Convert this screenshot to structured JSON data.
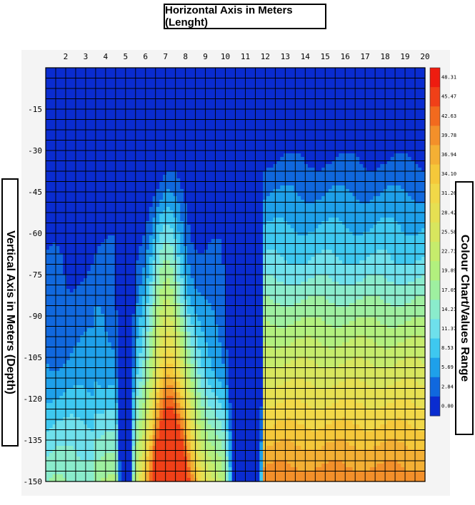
{
  "chart_data": {
    "type": "heatmap",
    "title": "Horizontal Axis in Meters (Lenght)",
    "xlabel": "Horizontal Axis in Meters (Lenght)",
    "ylabel": "Vertical Axis in Meters (Depth)",
    "colorbar_label": "Colour Chart/Values Range",
    "xlim": [
      1,
      20
    ],
    "ylim": [
      0,
      -150
    ],
    "x_ticks": [
      "2",
      "3",
      "4",
      "5",
      "6",
      "7",
      "8",
      "9",
      "10",
      "11",
      "12",
      "13",
      "14",
      "15",
      "16",
      "17",
      "18",
      "19",
      "20"
    ],
    "y_ticks": [
      "-15",
      "-30",
      "-45",
      "-60",
      "-75",
      "-90",
      "-105",
      "-120",
      "-135",
      "-150"
    ],
    "colorbar_ticks": [
      "48.31",
      "45.47",
      "42.63",
      "39.78",
      "36.94",
      "34.10",
      "31.26",
      "28.42",
      "25.58",
      "22.73",
      "19.89",
      "17.05",
      "14.21",
      "11.37",
      "8.53",
      "5.69",
      "2.84",
      "0.00"
    ],
    "colorbar_colors": [
      "#ee1c10",
      "#f04018",
      "#f26a1e",
      "#f3902a",
      "#f4b034",
      "#f5c83a",
      "#f1d848",
      "#e6e052",
      "#d8e65e",
      "#c6ec6c",
      "#b2f07e",
      "#9ef0a0",
      "#8aeccc",
      "#6ee0ec",
      "#3ec8f0",
      "#1ea0ea",
      "#1068de",
      "#0a2cd0"
    ],
    "levels": [
      0,
      2.84,
      5.69,
      8.53,
      11.37,
      14.21,
      17.05,
      19.89,
      22.73,
      25.58,
      28.42,
      31.26,
      34.1,
      36.94,
      39.78,
      42.63,
      45.47,
      48.31
    ],
    "grid": true,
    "legend": "right"
  }
}
